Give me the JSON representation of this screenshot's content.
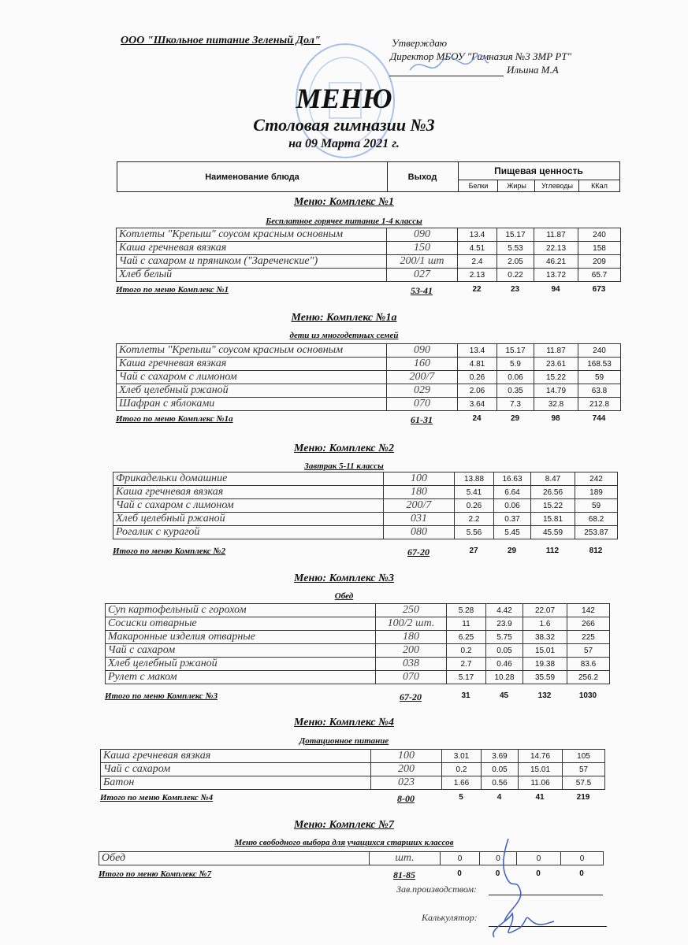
{
  "header": {
    "organization": "ООО \"Школьное питание Зеленый Дол\"",
    "approve": "Утверждаю",
    "director": "Директор МБОУ \"Гимназия №3 ЗМР РТ\"",
    "director_name": "Ильина М.А",
    "title": "МЕНЮ",
    "subtitle": "Столовая гимназии №3",
    "date": "на 09 Марта 2021 г."
  },
  "columns": {
    "name": "Наименование блюда",
    "yield": "Выход",
    "nutrition": "Пищевая ценность",
    "protein": "Белки",
    "fat": "Жиры",
    "carbs": "Углеводы",
    "kcal": "ККал"
  },
  "sections": [
    {
      "title": "Меню: Комплекс №1",
      "subtitle": "Бесплатное горячее питание  1-4 классы",
      "rows": [
        [
          "Котлеты  \"Крепыш\" соусом красным основным",
          "090",
          "13.4",
          "15.17",
          "11.87",
          "240"
        ],
        [
          "Каша гречневая вязкая",
          "150",
          "4.51",
          "5.53",
          "22.13",
          "158"
        ],
        [
          "Чай с сахаром и пряником (\"Зареченские\")",
          "200/1 шт",
          "2.4",
          "2.05",
          "46.21",
          "209"
        ],
        [
          "Хлеб белый",
          "027",
          "2.13",
          "0.22",
          "13.72",
          "65.7"
        ]
      ],
      "total": [
        "Итого по меню Комплекс №1",
        "53-41",
        "22",
        "23",
        "94",
        "673"
      ]
    },
    {
      "title": "Меню: Комплекс №1а",
      "subtitle": "дети из многодетных семей",
      "rows": [
        [
          "Котлеты  \"Крепыш\" соусом красным основным",
          "090",
          "13.4",
          "15.17",
          "11.87",
          "240"
        ],
        [
          "Каша гречневая вязкая",
          "160",
          "4.81",
          "5.9",
          "23.61",
          "168.53"
        ],
        [
          "Чай с сахаром с лимоном",
          "200/7",
          "0.26",
          "0.06",
          "15.22",
          "59"
        ],
        [
          "Хлеб  целебный ржаной",
          "029",
          "2.06",
          "0.35",
          "14.79",
          "63.8"
        ],
        [
          "Шафран с яблоками",
          "070",
          "3.64",
          "7.3",
          "32.8",
          "212.8"
        ]
      ],
      "total": [
        "Итого по меню Комплекс №1а",
        "61-31",
        "24",
        "29",
        "98",
        "744"
      ]
    },
    {
      "title": "Меню: Комплекс №2",
      "subtitle": "Завтрак 5-11 классы",
      "rows": [
        [
          "Фрикадельки домашние",
          "100",
          "13.88",
          "16.63",
          "8.47",
          "242"
        ],
        [
          "Каша гречневая вязкая",
          "180",
          "5.41",
          "6.64",
          "26.56",
          "189"
        ],
        [
          "Чай с сахаром с лимоном",
          "200/7",
          "0.26",
          "0.06",
          "15.22",
          "59"
        ],
        [
          "Хлеб  целебный ржаной",
          "031",
          "2.2",
          "0.37",
          "15.81",
          "68.2"
        ],
        [
          "Рогалик с курагой",
          "080",
          "5.56",
          "5.45",
          "45.59",
          "253.87"
        ]
      ],
      "total": [
        "Итого по меню Комплекс №2",
        "67-20",
        "27",
        "29",
        "112",
        "812"
      ]
    },
    {
      "title": "Меню: Комплекс №3",
      "subtitle": "Обед",
      "rows": [
        [
          "Суп картофельный с горохом",
          "250",
          "5.28",
          "4.42",
          "22.07",
          "142"
        ],
        [
          "Сосиски  отварные",
          "100/2 шт.",
          "11",
          "23.9",
          "1.6",
          "266"
        ],
        [
          "Макаронные изделия отварные",
          "180",
          "6.25",
          "5.75",
          "38.32",
          "225"
        ],
        [
          "Чай с сахаром",
          "200",
          "0.2",
          "0.05",
          "15.01",
          "57"
        ],
        [
          "Хлеб  целебный ржаной",
          "038",
          "2.7",
          "0.46",
          "19.38",
          "83.6"
        ],
        [
          "Рулет с маком",
          "070",
          "5.17",
          "10.28",
          "35.59",
          "256.2"
        ]
      ],
      "total": [
        "Итого по меню Комплекс №3",
        "67-20",
        "31",
        "45",
        "132",
        "1030"
      ]
    },
    {
      "title": "Меню: Комплекс №4",
      "subtitle": "Дотационное питание",
      "rows": [
        [
          "Каша гречневая вязкая",
          "100",
          "3.01",
          "3.69",
          "14.76",
          "105"
        ],
        [
          "Чай с сахаром",
          "200",
          "0.2",
          "0.05",
          "15.01",
          "57"
        ],
        [
          "Батон",
          "023",
          "1.66",
          "0.56",
          "11.06",
          "57.5"
        ]
      ],
      "total": [
        "Итого по меню Комплекс №4",
        "8-00",
        "5",
        "4",
        "41",
        "219"
      ]
    },
    {
      "title": "Меню: Комплекс №7",
      "subtitle": "Меню свободного выбора для учащихся старших классов",
      "rows": [
        [
          "Обед",
          "шт.",
          "0",
          "0",
          "0",
          "0"
        ]
      ],
      "total": [
        "Итого по меню Комплекс №7",
        "81-85",
        "0",
        "0",
        "0",
        "0"
      ]
    }
  ],
  "signatures": {
    "production": "Зав.производством:",
    "calculator": "Калькулятор:"
  },
  "colors": {
    "stamp": "#5b8fd6",
    "ink": "#3a5fc4"
  }
}
